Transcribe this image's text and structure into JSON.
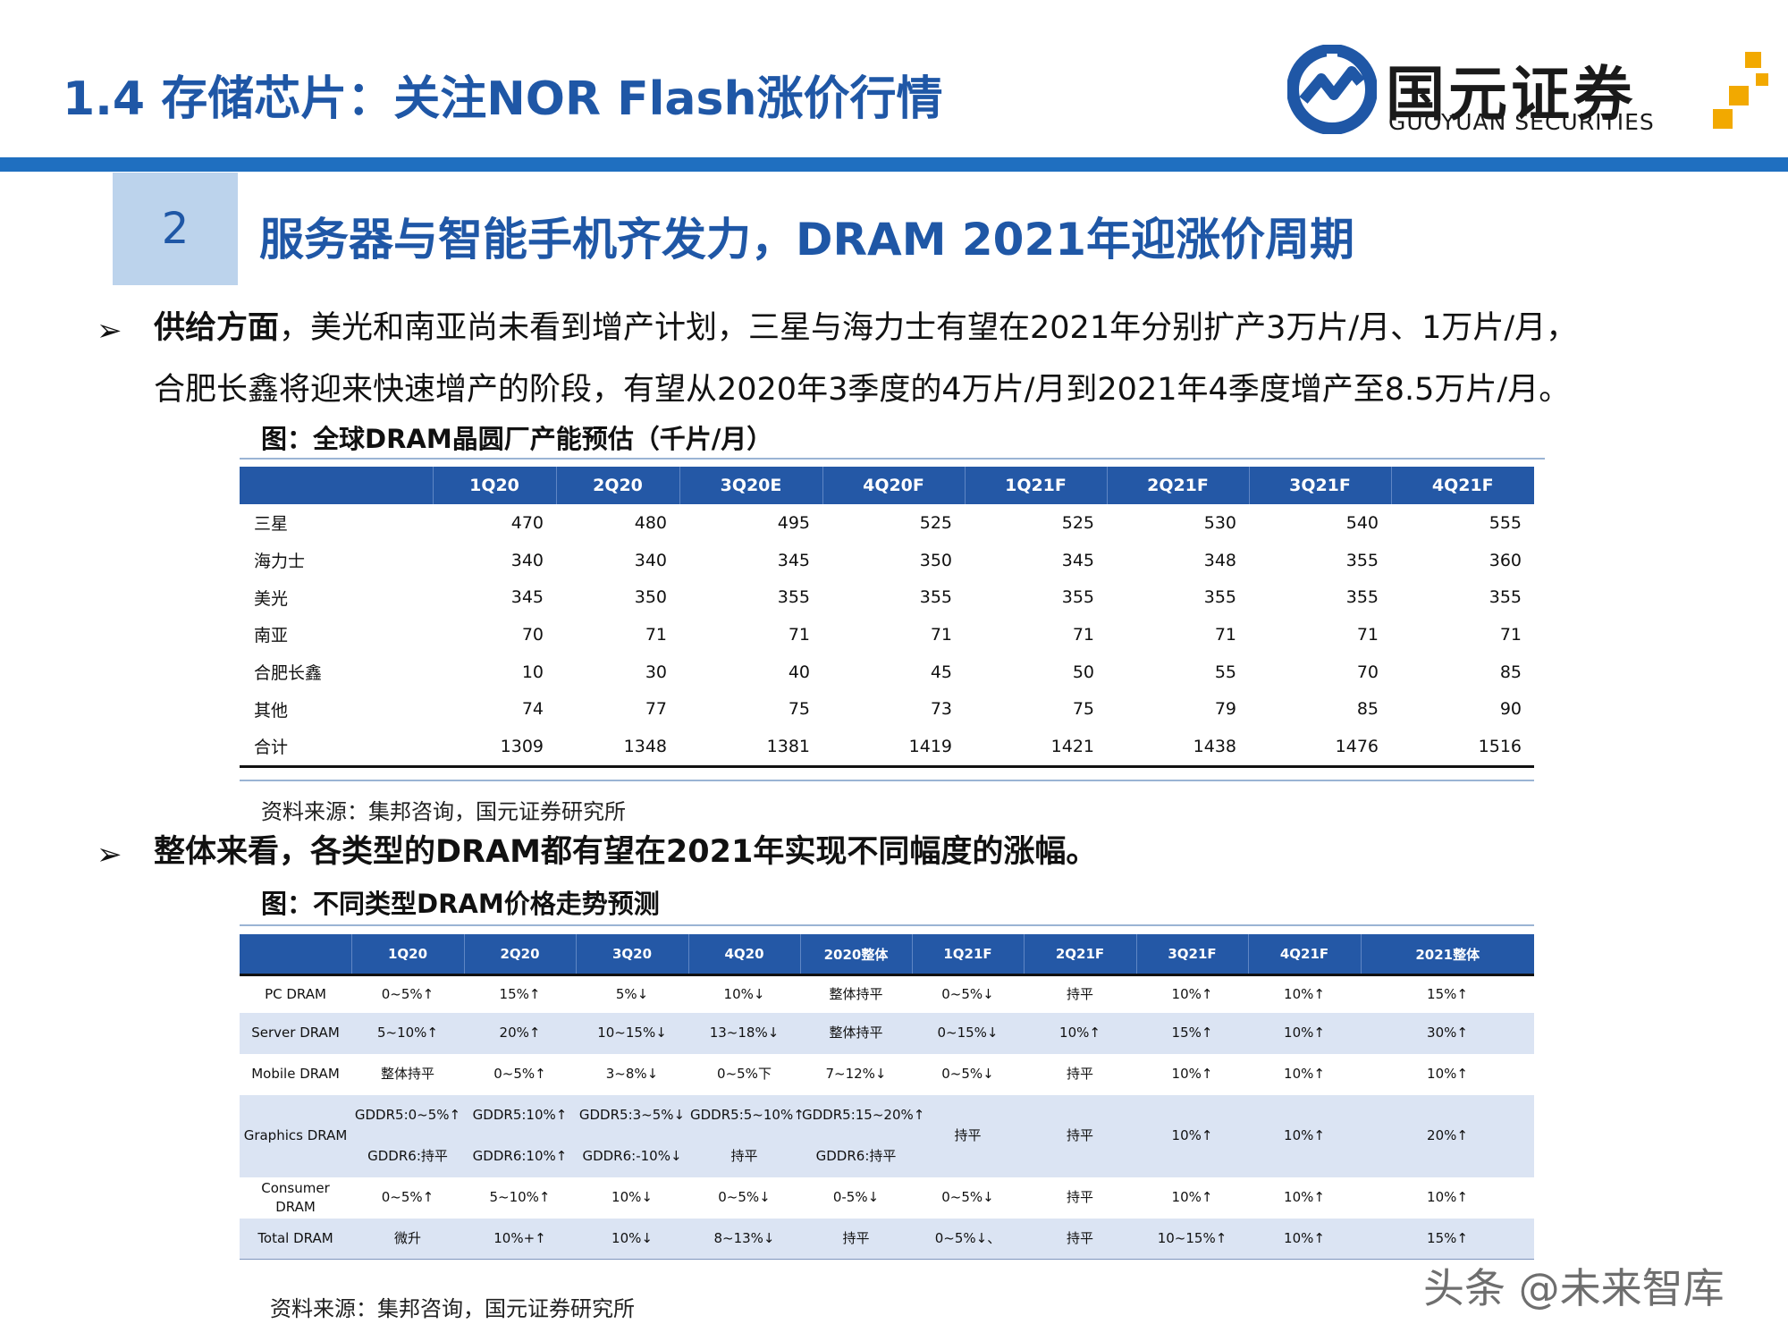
{
  "header": {
    "title": "1.4 存储芯片：关注NOR Flash涨价行情",
    "logo_cn": "国元证券",
    "logo_en": "GUOYUAN SECURITIES",
    "accent": "#1f57a6"
  },
  "section": {
    "number": "2",
    "title": "服务器与智能手机齐发力，DRAM 2021年迎涨价周期"
  },
  "bullet1": {
    "bold": "供给方面",
    "line1": "，美光和南亚尚未看到增产计划，三星与海力士有望在2021年分别扩产3万片/月、1万片/月，",
    "line2": "合肥长鑫将迎来快速增产的阶段，有望从2020年3季度的4万片/月到2021年4季度增产至8.5万片/月。"
  },
  "table1": {
    "title": "图：全球DRAM晶圆厂产能预估（千片/月）",
    "headers": [
      "",
      "1Q20",
      "2Q20",
      "3Q20E",
      "4Q20F",
      "1Q21F",
      "2Q21F",
      "3Q21F",
      "4Q21F"
    ],
    "rows": [
      [
        "三星",
        "470",
        "480",
        "495",
        "525",
        "525",
        "530",
        "540",
        "555"
      ],
      [
        "海力士",
        "340",
        "340",
        "345",
        "350",
        "345",
        "348",
        "355",
        "360"
      ],
      [
        "美光",
        "345",
        "350",
        "355",
        "355",
        "355",
        "355",
        "355",
        "355"
      ],
      [
        "南亚",
        "70",
        "71",
        "71",
        "71",
        "71",
        "71",
        "71",
        "71"
      ],
      [
        "合肥长鑫",
        "10",
        "30",
        "40",
        "45",
        "50",
        "55",
        "70",
        "85"
      ],
      [
        "其他",
        "74",
        "77",
        "75",
        "73",
        "75",
        "79",
        "85",
        "90"
      ],
      [
        "合计",
        "1309",
        "1348",
        "1381",
        "1419",
        "1421",
        "1438",
        "1476",
        "1516"
      ]
    ],
    "source": "资料来源：集邦咨询，国元证券研究所"
  },
  "bullet2": {
    "text": "整体来看，各类型的DRAM都有望在2021年实现不同幅度的涨幅。"
  },
  "table2": {
    "title": "图：不同类型DRAM价格走势预测",
    "headers": [
      "",
      "1Q20",
      "2Q20",
      "3Q20",
      "4Q20",
      "2020整体",
      "1Q21F",
      "2Q21F",
      "3Q21F",
      "4Q21F",
      "2021整体"
    ],
    "rows": {
      "pc": [
        "PC DRAM",
        "0~5%↑",
        "15%↑",
        "5%↓",
        "10%↓",
        "整体持平",
        "0~5%↓",
        "持平",
        "10%↑",
        "10%↑",
        "15%↑"
      ],
      "server": [
        "Server DRAM",
        "5~10%↑",
        "20%↑",
        "10~15%↓",
        "13~18%↓",
        "整体持平",
        "0~15%↓",
        "10%↑",
        "15%↑",
        "10%↑",
        "30%↑"
      ],
      "mobile": [
        "Mobile DRAM",
        "整体持平",
        "0~5%↑",
        "3~8%↓",
        "0~5%下",
        "7~12%↓",
        "0~5%↓",
        "持平",
        "10%↑",
        "10%↑",
        "10%↑"
      ],
      "graphics_label": "Graphics DRAM",
      "graphics_gddr5": [
        "GDDR5:0~5%↑",
        "GDDR5:10%↑",
        "GDDR5:3~5%↓",
        "GDDR5:5~10%↑",
        "GDDR5:15~20%↑"
      ],
      "graphics_gddr6": [
        "GDDR6:持平",
        "GDDR6:10%↑",
        "GDDR6:-10%↓",
        "持平",
        "GDDR6:持平"
      ],
      "graphics_rest": [
        "持平",
        "持平",
        "10%↑",
        "10%↑",
        "20%↑"
      ],
      "consumer": [
        "Consumer DRAM",
        "0~5%↑",
        "5~10%↑",
        "10%↓",
        "0~5%↓",
        "0-5%↓",
        "0~5%↓",
        "持平",
        "10%↑",
        "10%↑",
        "10%↑"
      ],
      "total": [
        "Total DRAM",
        "微升",
        "10%+↑",
        "10%↓",
        "8~13%↓",
        "持平",
        "0~5%↓、",
        "持平",
        "10~15%↑",
        "10%↑",
        "15%↑"
      ]
    },
    "source": "资料来源：集邦咨询，国元证券研究所"
  },
  "watermark": "头条 @未来智库"
}
